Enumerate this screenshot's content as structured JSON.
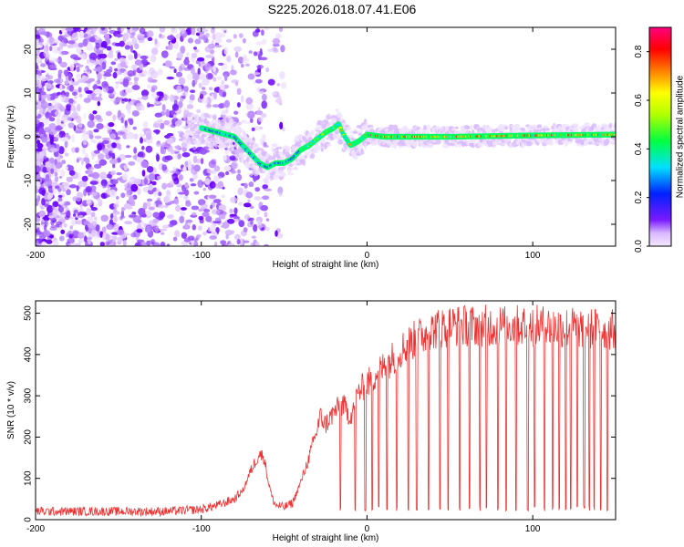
{
  "page_title": "S225.2026.018.07.41.E06",
  "chart_data": [
    {
      "type": "heatmap",
      "title": "S225.2026.018.07.41.E06",
      "xlabel": "Height of straight line (km)",
      "ylabel": "Frequency (Hz)",
      "xlim": [
        -200,
        150
      ],
      "ylim": [
        -25,
        25
      ],
      "x_ticks": [
        -200,
        -100,
        0,
        100
      ],
      "y_ticks": [
        -20,
        -10,
        0,
        10,
        20
      ],
      "colorbar": {
        "label": "Normalized spectral amplitude",
        "range": [
          0,
          0.9
        ],
        "ticks": [
          0.0,
          0.2,
          0.4,
          0.6,
          0.8
        ]
      },
      "trace": {
        "x": [
          -100,
          -90,
          -80,
          -75,
          -70,
          -65,
          -60,
          -55,
          -50,
          -45,
          -40,
          -35,
          -30,
          -25,
          -20,
          -17,
          -15,
          -10,
          -5,
          0,
          10,
          50,
          100,
          150
        ],
        "frequency": [
          2,
          1,
          0,
          -2,
          -4,
          -6,
          -7,
          -6,
          -6,
          -5,
          -3,
          -2,
          -0.5,
          1,
          2,
          3,
          1,
          -2,
          -1,
          0.5,
          0,
          0,
          0.3,
          0.5
        ]
      }
    },
    {
      "type": "line",
      "xlabel": "Height of straight line (km)",
      "ylabel": "SNR (10 * v/v)",
      "xlim": [
        -200,
        150
      ],
      "ylim": [
        0,
        530
      ],
      "x_ticks": [
        -200,
        -100,
        0,
        100
      ],
      "y_ticks": [
        0,
        100,
        200,
        300,
        400,
        500
      ],
      "series_color": "#f03030",
      "envelope": {
        "x": [
          -200,
          -120,
          -100,
          -90,
          -80,
          -75,
          -70,
          -65,
          -62,
          -60,
          -57,
          -55,
          -50,
          -45,
          -40,
          -35,
          -30,
          -28,
          -25,
          -20,
          -15,
          -10,
          -5,
          0,
          5,
          10,
          20,
          30,
          40,
          50,
          100,
          150
        ],
        "snr": [
          20,
          20,
          25,
          35,
          50,
          70,
          120,
          160,
          150,
          100,
          50,
          35,
          30,
          40,
          90,
          150,
          220,
          250,
          230,
          260,
          280,
          250,
          310,
          330,
          350,
          370,
          410,
          440,
          460,
          470,
          470,
          460
        ]
      },
      "dropout_x": [
        -16,
        -7,
        -1,
        3,
        7,
        12,
        18,
        25,
        30,
        37,
        44,
        49,
        56,
        62,
        68,
        72,
        79,
        84,
        90,
        97,
        101,
        107,
        112,
        116,
        120,
        123,
        127,
        131,
        134,
        137,
        141,
        145
      ]
    }
  ]
}
